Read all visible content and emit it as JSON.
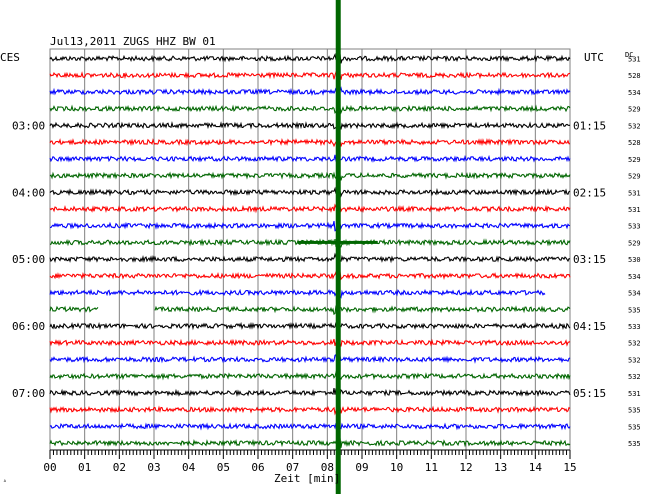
{
  "header": {
    "title": "Jul13,2011   ZUGS HHZ BW 01",
    "left_label": "CES",
    "right_label": "UTC",
    "dc_label": "DC"
  },
  "xaxis": {
    "label": "Zeit [min]",
    "ticks": [
      "00",
      "01",
      "02",
      "03",
      "04",
      "05",
      "06",
      "07",
      "08",
      "09",
      "10",
      "11",
      "12",
      "13",
      "14",
      "15"
    ]
  },
  "colors": {
    "black": "#000000",
    "red": "#ff0000",
    "blue": "#0000ff",
    "green": "#006600",
    "event": "#006600",
    "grid": "#808080"
  },
  "chart_data": {
    "type": "line",
    "title": "Jul13,2011   ZUGS HHZ BW 01",
    "xlabel": "Zeit [min]",
    "xlim": [
      0,
      15
    ],
    "grid": true,
    "trace_color_cycle": [
      "#000000",
      "#ff0000",
      "#0000ff",
      "#006600"
    ],
    "left_time_labels": [
      {
        "trace": 4,
        "label": "03:00"
      },
      {
        "trace": 8,
        "label": "04:00"
      },
      {
        "trace": 12,
        "label": "05:00"
      },
      {
        "trace": 16,
        "label": "06:00"
      },
      {
        "trace": 20,
        "label": "07:00"
      }
    ],
    "right_time_labels": [
      {
        "trace": 4,
        "label": "01:15"
      },
      {
        "trace": 8,
        "label": "02:15"
      },
      {
        "trace": 12,
        "label": "03:15"
      },
      {
        "trace": 16,
        "label": "04:15"
      },
      {
        "trace": 20,
        "label": "05:15"
      }
    ],
    "dc_values": [
      "531",
      "528",
      "534",
      "529",
      "532",
      "528",
      "529",
      "529",
      "531",
      "531",
      "533",
      "529",
      "530",
      "534",
      "534",
      "535",
      "533",
      "532",
      "532",
      "532",
      "531",
      "535",
      "535",
      "535"
    ],
    "gaps": [
      {
        "trace": 15,
        "from_min": 1.4,
        "to_min": 3.0
      },
      {
        "trace": 14,
        "from_min": 14.3,
        "to_min": 15.0
      }
    ],
    "event_marker_min": 8.3
  }
}
